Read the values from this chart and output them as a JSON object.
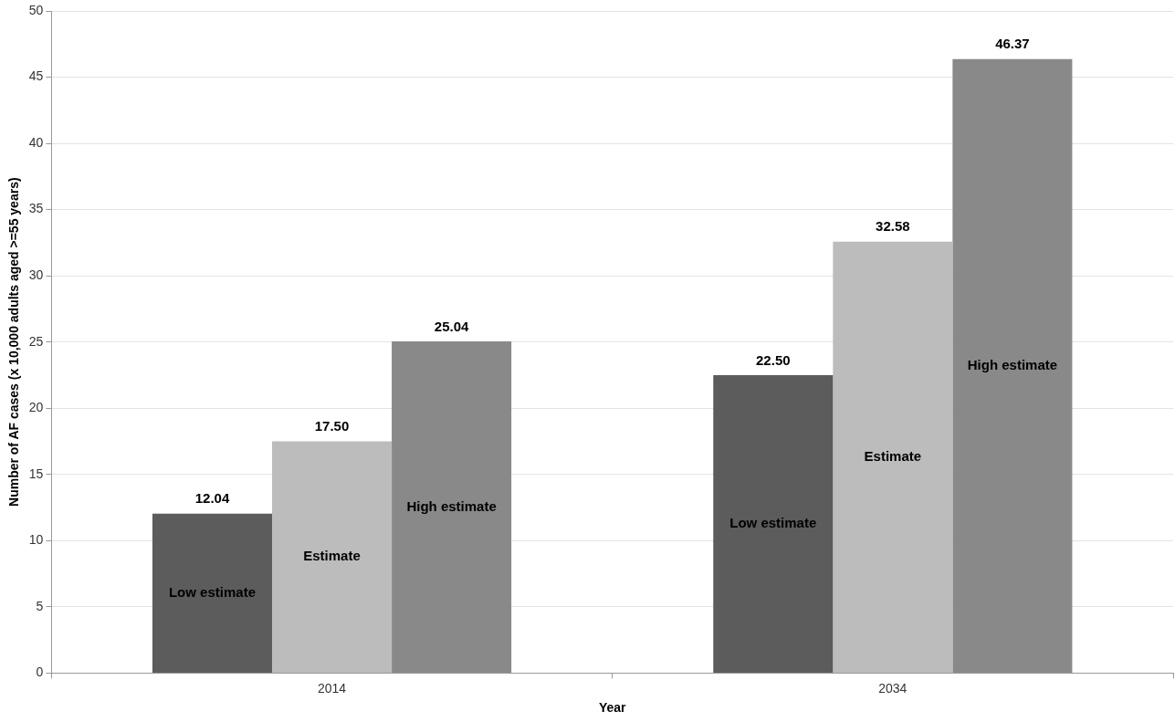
{
  "chart_data": {
    "type": "bar",
    "xlabel": "Year",
    "ylabel": "Number of AF cases (x 10,000 adults aged >=55 years)",
    "categories": [
      "2014",
      "2034"
    ],
    "series": [
      {
        "name": "Low estimate",
        "color": "#5c5c5c",
        "values": [
          12.04,
          22.5
        ],
        "value_labels": [
          "12.04",
          "22.50"
        ]
      },
      {
        "name": "Estimate",
        "color": "#bcbcbc",
        "values": [
          17.5,
          32.58
        ],
        "value_labels": [
          "17.50",
          "32.58"
        ]
      },
      {
        "name": "High estimate",
        "color": "#898989",
        "values": [
          25.04,
          46.37
        ],
        "value_labels": [
          "25.04",
          "46.37"
        ]
      }
    ],
    "ylim": [
      0,
      50
    ],
    "yticks": [
      0,
      5,
      10,
      15,
      20,
      25,
      30,
      35,
      40,
      45,
      50
    ],
    "grid": "y",
    "legend": false
  }
}
